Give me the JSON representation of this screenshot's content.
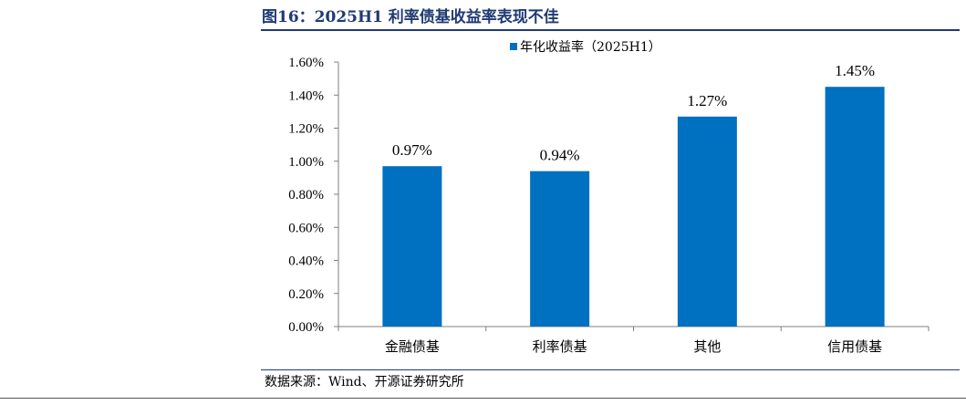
{
  "figure": {
    "title": "图16：2025H1 利率债基收益率表现不佳",
    "source": "数据来源：Wind、开源证券研究所"
  },
  "colors": {
    "bar": "#0070c0",
    "title": "#1f3a73"
  },
  "chart_data": {
    "type": "bar",
    "categories": [
      "金融债基",
      "利率债基",
      "其他",
      "信用债基"
    ],
    "series": [
      {
        "name": "年化收益率（2025H1）",
        "values": [
          0.97,
          0.94,
          1.27,
          1.45
        ]
      }
    ],
    "data_labels": [
      "0.97%",
      "0.94%",
      "1.27%",
      "1.45%"
    ],
    "yticks": [
      "0.00%",
      "0.20%",
      "0.40%",
      "0.60%",
      "0.80%",
      "1.00%",
      "1.20%",
      "1.40%",
      "1.60%"
    ],
    "ylim": [
      0,
      1.6
    ],
    "ytick_step": 0.2,
    "legend_position": "top-center",
    "grid": false
  }
}
